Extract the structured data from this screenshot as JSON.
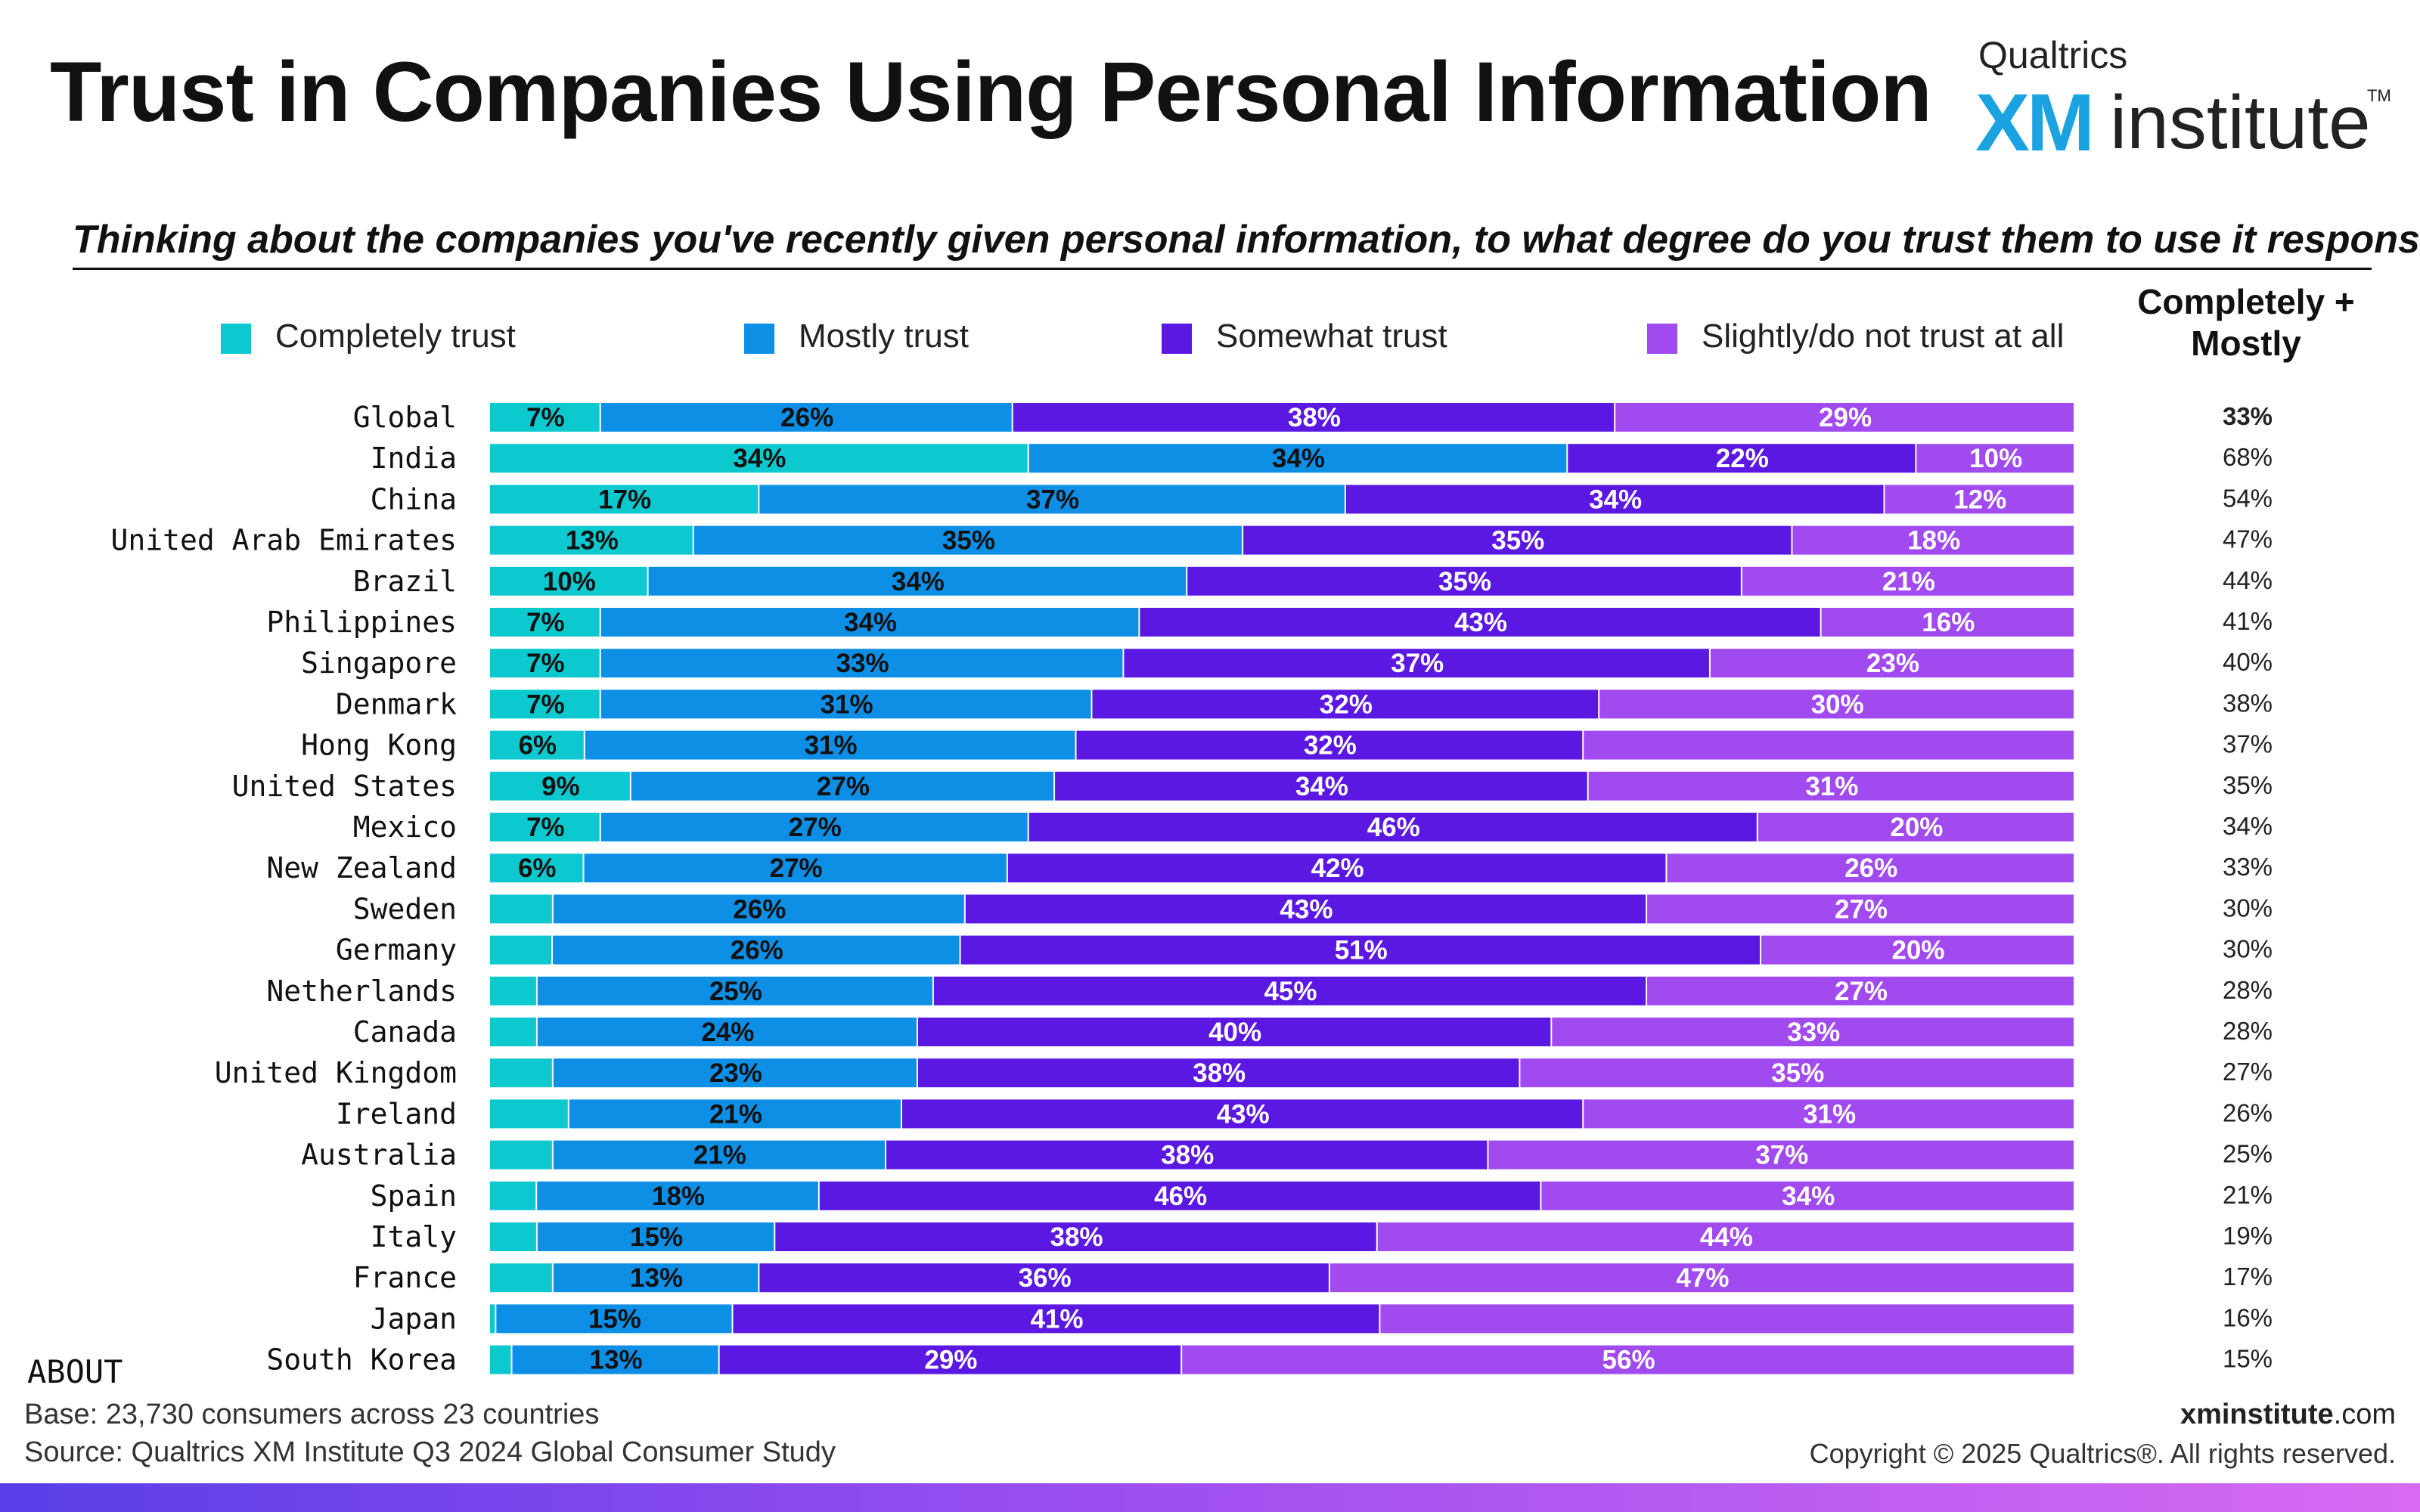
{
  "header": {
    "title": "Trust in Companies Using Personal Information",
    "logo": {
      "brand": "Qualtrics",
      "mark": "XM",
      "word": "institute",
      "tm": "TM"
    }
  },
  "question": "Thinking about the companies you've recently given personal information, to what degree do you trust them to use it responsibly?",
  "cm_header": "Completely + Mostly",
  "colors": {
    "completely": "#0bc9cf",
    "mostly": "#0e8fe6",
    "somewhat": "#5b18e3",
    "slightly": "#a04af0"
  },
  "chart_data": {
    "type": "bar",
    "orientation": "horizontal",
    "stacked": true,
    "xlim": [
      0,
      100
    ],
    "legend_position": "top",
    "categories": [
      "Global",
      "India",
      "China",
      "United Arab Emirates",
      "Brazil",
      "Philippines",
      "Singapore",
      "Denmark",
      "Hong Kong",
      "United States",
      "Mexico",
      "New Zealand",
      "Sweden",
      "Germany",
      "Netherlands",
      "Canada",
      "United Kingdom",
      "Ireland",
      "Australia",
      "Spain",
      "Italy",
      "France",
      "Japan",
      "South Korea"
    ],
    "series": [
      {
        "name": "Completely trust",
        "values": [
          7,
          34,
          17,
          13,
          10,
          7,
          7,
          7,
          6,
          9,
          7,
          6,
          4,
          4,
          3,
          3,
          4,
          5,
          4,
          3,
          3,
          4,
          0.4,
          1.4
        ],
        "labels": [
          "7%",
          "34%",
          "17%",
          "13%",
          "10%",
          "7%",
          "7%",
          "7%",
          "6%",
          "9%",
          "7%",
          "6%",
          "",
          "",
          "",
          "",
          "",
          "",
          "",
          "",
          "",
          "",
          "",
          ""
        ]
      },
      {
        "name": "Mostly trust",
        "values": [
          26,
          34,
          37,
          35,
          34,
          34,
          33,
          31,
          31,
          27,
          27,
          27,
          26,
          26,
          25,
          24,
          23,
          21,
          21,
          18,
          15,
          13,
          15,
          13
        ],
        "labels": [
          "26%",
          "34%",
          "37%",
          "35%",
          "34%",
          "34%",
          "33%",
          "31%",
          "31%",
          "27%",
          "27%",
          "27%",
          "26%",
          "26%",
          "25%",
          "24%",
          "23%",
          "21%",
          "21%",
          "18%",
          "15%",
          "13%",
          "15%",
          "13%"
        ]
      },
      {
        "name": "Somewhat trust",
        "values": [
          38,
          22,
          34,
          35,
          35,
          43,
          37,
          32,
          32,
          34,
          46,
          42,
          43,
          51,
          45,
          40,
          38,
          43,
          38,
          46,
          38,
          36,
          41,
          29
        ],
        "labels": [
          "38%",
          "22%",
          "34%",
          "35%",
          "35%",
          "43%",
          "37%",
          "32%",
          "32%",
          "34%",
          "46%",
          "42%",
          "43%",
          "51%",
          "45%",
          "40%",
          "38%",
          "43%",
          "38%",
          "46%",
          "38%",
          "36%",
          "41%",
          "29%"
        ]
      },
      {
        "name": "Slightly/do not trust at all",
        "values": [
          29,
          10,
          12,
          18,
          21,
          16,
          23,
          30,
          31,
          31,
          20,
          26,
          27,
          20,
          27,
          33,
          35,
          31,
          37,
          34,
          44,
          47,
          44,
          56
        ],
        "labels": [
          "29%",
          "10%",
          "12%",
          "18%",
          "21%",
          "16%",
          "23%",
          "30%",
          "",
          "31%",
          "20%",
          "26%",
          "27%",
          "20%",
          "27%",
          "33%",
          "35%",
          "31%",
          "37%",
          "34%",
          "44%",
          "47%",
          "",
          "56%"
        ]
      }
    ],
    "completely_plus_mostly": [
      "33%",
      "68%",
      "54%",
      "47%",
      "44%",
      "41%",
      "40%",
      "38%",
      "37%",
      "35%",
      "34%",
      "33%",
      "30%",
      "30%",
      "28%",
      "28%",
      "27%",
      "26%",
      "25%",
      "21%",
      "19%",
      "17%",
      "16%",
      "15%"
    ]
  },
  "footer": {
    "about": "ABOUT",
    "base": "Base: 23,730 consumers across 23 countries",
    "source": "Source: Qualtrics XM Institute Q3 2024 Global Consumer Study",
    "site_bold": "xminstitute",
    "site_rest": ".com",
    "copyright": "Copyright © 2025 Qualtrics®. All rights reserved."
  }
}
